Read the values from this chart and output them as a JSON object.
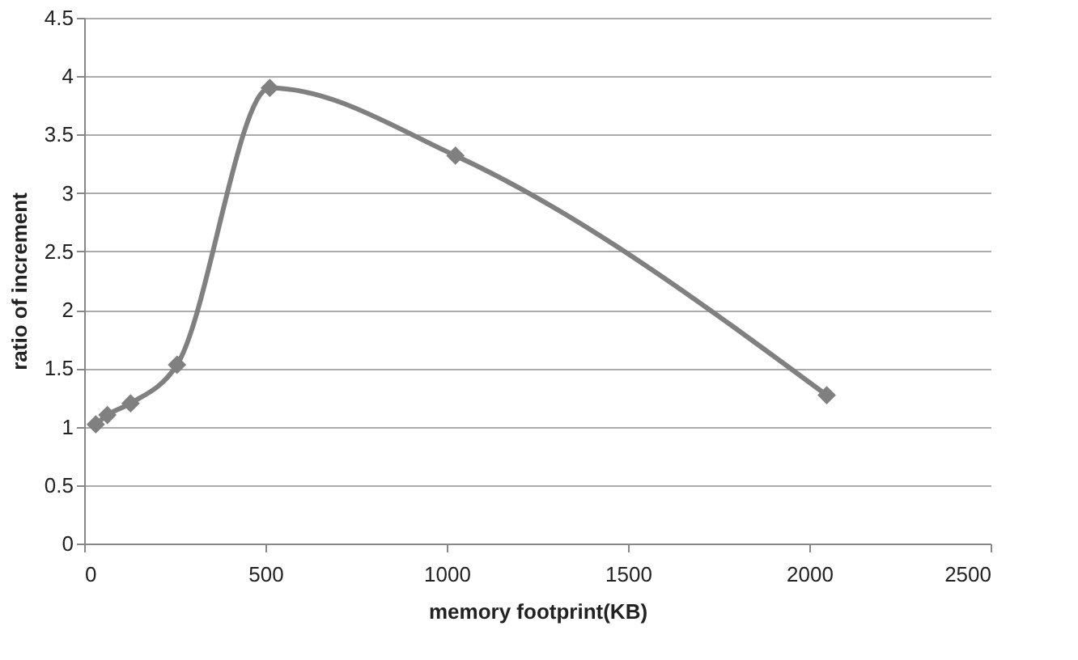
{
  "chart_data": {
    "type": "line",
    "xlabel": "memory footprint(KB)",
    "ylabel": "ratio of increment",
    "x": [
      32,
      64,
      128,
      256,
      512,
      1024,
      2048
    ],
    "series": [
      {
        "color": "#808080",
        "values": [
          1.02,
          1.1,
          1.2,
          1.53,
          3.9,
          3.32,
          1.27
        ]
      }
    ],
    "xlim": [
      0,
      2500
    ],
    "xticks": [
      0,
      500,
      1000,
      1500,
      2000,
      2500
    ],
    "ylim": [
      0,
      4.5
    ],
    "yticks": [
      0,
      0.5,
      1,
      1.5,
      2,
      2.5,
      3,
      3.5,
      4,
      4.5
    ],
    "grid": "y",
    "marker": "diamond",
    "line_style": "solid",
    "legend": false
  }
}
